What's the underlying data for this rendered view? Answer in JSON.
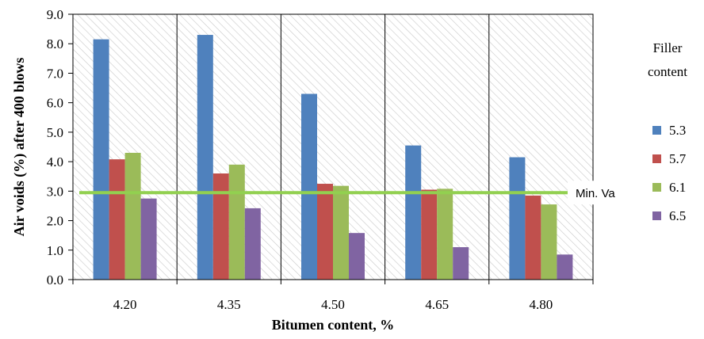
{
  "chart_data": {
    "type": "bar",
    "title": "",
    "xlabel": "Bitumen content, %",
    "ylabel": "Air voids (%) after 400 blows",
    "categories": [
      "4.20",
      "4.35",
      "4.50",
      "4.65",
      "4.80"
    ],
    "ylim": [
      0,
      9
    ],
    "ytick_labels": [
      "0.0",
      "1.0",
      "2.0",
      "3.0",
      "4.0",
      "5.0",
      "6.0",
      "7.0",
      "8.0",
      "9.0"
    ],
    "ytick_values": [
      0,
      1,
      2,
      3,
      4,
      5,
      6,
      7,
      8,
      9
    ],
    "grid": false,
    "background_pattern": "diagonal-hatch",
    "legend": {
      "title_lines": [
        "Filler",
        "content"
      ],
      "position": "right"
    },
    "series": [
      {
        "name": "5.3",
        "color": "#4F81BD",
        "values": [
          8.15,
          8.3,
          6.3,
          4.55,
          4.15
        ]
      },
      {
        "name": "5.7",
        "color": "#C0504D",
        "values": [
          4.08,
          3.6,
          3.25,
          3.05,
          2.85
        ]
      },
      {
        "name": "6.1",
        "color": "#9BBB59",
        "values": [
          4.3,
          3.9,
          3.18,
          3.08,
          2.55
        ]
      },
      {
        "name": "6.5",
        "color": "#8064A2",
        "values": [
          2.75,
          2.42,
          1.58,
          1.1,
          0.85
        ]
      }
    ],
    "reference_line": {
      "label": "Min. Va",
      "value": 2.95,
      "color": "#92D050"
    }
  }
}
